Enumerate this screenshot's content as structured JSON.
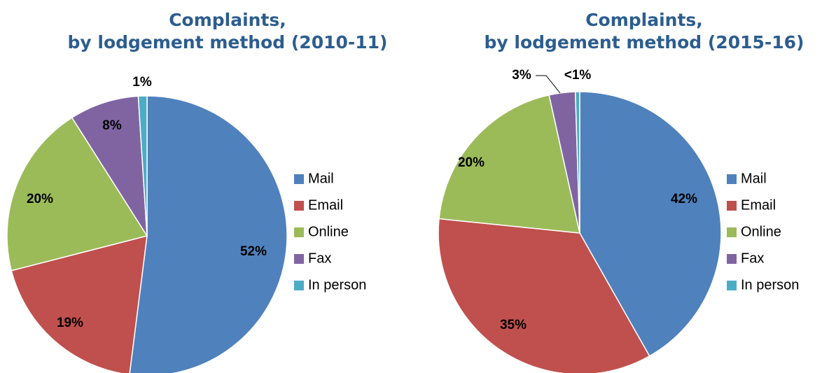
{
  "chart_data": [
    {
      "type": "pie",
      "title": "Complaints,\nby lodgement method (2010-11)",
      "categories": [
        "Mail",
        "Email",
        "Online",
        "Fax",
        "In person"
      ],
      "values": [
        52,
        19,
        20,
        8,
        1
      ],
      "value_labels": [
        "52%",
        "19%",
        "20%",
        "8%",
        "1%"
      ],
      "colors": [
        "#4f81bd",
        "#c0504d",
        "#9bbb59",
        "#8064a2",
        "#4bacc6"
      ],
      "legend": "right"
    },
    {
      "type": "pie",
      "title": "Complaints,\nby lodgement method (2015-16)",
      "categories": [
        "Mail",
        "Email",
        "Online",
        "Fax",
        "In person"
      ],
      "values": [
        42,
        35,
        20,
        3,
        0.5
      ],
      "value_labels": [
        "42%",
        "35%",
        "20%",
        "3%",
        "<1%"
      ],
      "colors": [
        "#4f81bd",
        "#c0504d",
        "#9bbb59",
        "#8064a2",
        "#4bacc6"
      ],
      "legend": "right"
    }
  ]
}
